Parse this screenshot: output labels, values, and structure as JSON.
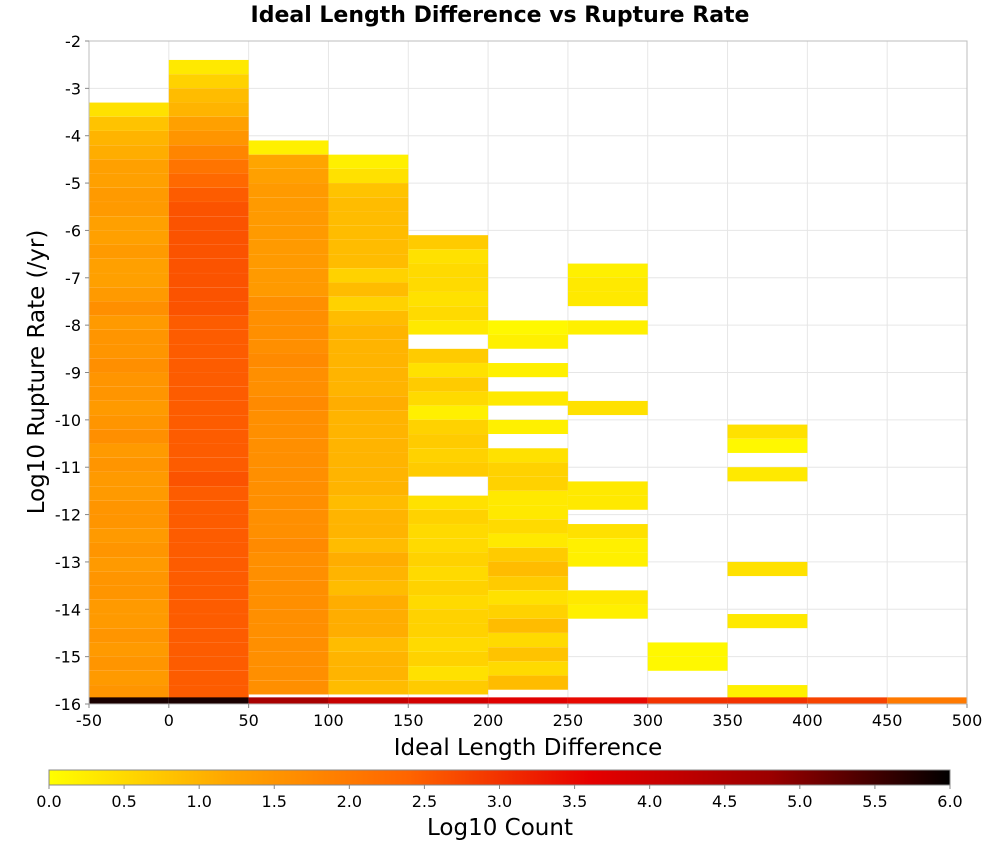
{
  "chart_data": {
    "type": "heatmap",
    "title": "Ideal Length Difference vs Rupture Rate",
    "xlabel": "Ideal Length Difference",
    "ylabel": "Log10 Rupture Rate (/yr)",
    "xlim": [
      -50,
      500
    ],
    "ylim": [
      -16,
      -2
    ],
    "x_ticks": [
      "-50",
      "0",
      "50",
      "100",
      "150",
      "200",
      "250",
      "300",
      "350",
      "400",
      "450",
      "500"
    ],
    "y_ticks": [
      "-2",
      "-3",
      "-4",
      "-5",
      "-6",
      "-7",
      "-8",
      "-9",
      "-10",
      "-11",
      "-12",
      "-13",
      "-14",
      "-15",
      "-16"
    ],
    "grid": true,
    "x_bin_width": 50,
    "y_bin_height": 0.286,
    "colorbar": {
      "label": "Log10 Count",
      "min": 0.0,
      "max": 6.0,
      "ticks": [
        "0.0",
        "0.5",
        "1.0",
        "1.5",
        "2.0",
        "2.5",
        "3.0",
        "3.5",
        "4.0",
        "4.5",
        "5.0",
        "5.5",
        "6.0"
      ],
      "colors": [
        "#ffff00",
        "#ffa500",
        "#ff6400",
        "#e60000",
        "#9b0000",
        "#000000"
      ]
    },
    "columns": [
      {
        "x_start": -50,
        "cells": [
          {
            "y": -3.3,
            "v": 0.4
          },
          {
            "y": -3.6,
            "v": 0.8
          },
          {
            "y": -3.9,
            "v": 1.0
          },
          {
            "y": -4.2,
            "v": 1.1
          },
          {
            "y": -4.5,
            "v": 1.3
          },
          {
            "y": -4.8,
            "v": 1.3
          },
          {
            "y": -5.1,
            "v": 1.4
          },
          {
            "y": -5.4,
            "v": 1.4
          },
          {
            "y": -5.7,
            "v": 1.3
          },
          {
            "y": -6.0,
            "v": 1.3
          },
          {
            "y": -6.3,
            "v": 1.4
          },
          {
            "y": -6.6,
            "v": 1.3
          },
          {
            "y": -6.9,
            "v": 1.3
          },
          {
            "y": -7.2,
            "v": 1.4
          },
          {
            "y": -7.5,
            "v": 1.6
          },
          {
            "y": -7.8,
            "v": 1.4
          },
          {
            "y": -8.1,
            "v": 1.5
          },
          {
            "y": -8.4,
            "v": 1.5
          },
          {
            "y": -8.7,
            "v": 1.6
          },
          {
            "y": -9.0,
            "v": 1.5
          },
          {
            "y": -9.3,
            "v": 1.5
          },
          {
            "y": -9.6,
            "v": 1.4
          },
          {
            "y": -9.9,
            "v": 1.5
          },
          {
            "y": -10.2,
            "v": 1.6
          },
          {
            "y": -10.5,
            "v": 1.4
          },
          {
            "y": -10.8,
            "v": 1.5
          },
          {
            "y": -11.1,
            "v": 1.4
          },
          {
            "y": -11.4,
            "v": 1.4
          },
          {
            "y": -11.7,
            "v": 1.5
          },
          {
            "y": -12.0,
            "v": 1.5
          },
          {
            "y": -12.3,
            "v": 1.4
          },
          {
            "y": -12.6,
            "v": 1.5
          },
          {
            "y": -12.9,
            "v": 1.4
          },
          {
            "y": -13.2,
            "v": 1.5
          },
          {
            "y": -13.5,
            "v": 1.5
          },
          {
            "y": -13.8,
            "v": 1.4
          },
          {
            "y": -14.1,
            "v": 1.4
          },
          {
            "y": -14.4,
            "v": 1.5
          },
          {
            "y": -14.7,
            "v": 1.4
          },
          {
            "y": -15.0,
            "v": 1.5
          },
          {
            "y": -15.3,
            "v": 1.4
          },
          {
            "y": -15.6,
            "v": 1.5
          }
        ]
      },
      {
        "x_start": 0,
        "cells": [
          {
            "y": -2.4,
            "v": 0.3
          },
          {
            "y": -2.7,
            "v": 0.6
          },
          {
            "y": -3.0,
            "v": 0.9
          },
          {
            "y": -3.3,
            "v": 1.0
          },
          {
            "y": -3.6,
            "v": 1.3
          },
          {
            "y": -3.9,
            "v": 1.5
          },
          {
            "y": -4.2,
            "v": 1.8
          },
          {
            "y": -4.5,
            "v": 2.1
          },
          {
            "y": -4.8,
            "v": 2.3
          },
          {
            "y": -5.1,
            "v": 2.5
          },
          {
            "y": -5.4,
            "v": 2.6
          },
          {
            "y": -5.7,
            "v": 2.6
          },
          {
            "y": -6.0,
            "v": 2.6
          },
          {
            "y": -6.3,
            "v": 2.6
          },
          {
            "y": -6.6,
            "v": 2.6
          },
          {
            "y": -6.9,
            "v": 2.6
          },
          {
            "y": -7.2,
            "v": 2.6
          },
          {
            "y": -7.5,
            "v": 2.6
          },
          {
            "y": -7.8,
            "v": 2.5
          },
          {
            "y": -8.1,
            "v": 2.5
          },
          {
            "y": -8.4,
            "v": 2.5
          },
          {
            "y": -8.7,
            "v": 2.5
          },
          {
            "y": -9.0,
            "v": 2.5
          },
          {
            "y": -9.3,
            "v": 2.5
          },
          {
            "y": -9.6,
            "v": 2.5
          },
          {
            "y": -9.9,
            "v": 2.5
          },
          {
            "y": -10.2,
            "v": 2.5
          },
          {
            "y": -10.5,
            "v": 2.5
          },
          {
            "y": -10.8,
            "v": 2.5
          },
          {
            "y": -11.1,
            "v": 2.6
          },
          {
            "y": -11.4,
            "v": 2.5
          },
          {
            "y": -11.7,
            "v": 2.5
          },
          {
            "y": -12.0,
            "v": 2.5
          },
          {
            "y": -12.3,
            "v": 2.5
          },
          {
            "y": -12.6,
            "v": 2.5
          },
          {
            "y": -12.9,
            "v": 2.5
          },
          {
            "y": -13.2,
            "v": 2.5
          },
          {
            "y": -13.5,
            "v": 2.5
          },
          {
            "y": -13.8,
            "v": 2.5
          },
          {
            "y": -14.1,
            "v": 2.5
          },
          {
            "y": -14.4,
            "v": 2.5
          },
          {
            "y": -14.7,
            "v": 2.5
          },
          {
            "y": -15.0,
            "v": 2.5
          },
          {
            "y": -15.3,
            "v": 2.5
          },
          {
            "y": -15.6,
            "v": 2.5
          }
        ]
      },
      {
        "x_start": 50,
        "cells": [
          {
            "y": -4.1,
            "v": 0.2
          },
          {
            "y": -4.4,
            "v": 1.2
          },
          {
            "y": -4.7,
            "v": 1.3
          },
          {
            "y": -5.0,
            "v": 1.4
          },
          {
            "y": -5.3,
            "v": 1.4
          },
          {
            "y": -5.6,
            "v": 1.4
          },
          {
            "y": -5.9,
            "v": 1.4
          },
          {
            "y": -6.2,
            "v": 1.4
          },
          {
            "y": -6.5,
            "v": 1.4
          },
          {
            "y": -6.8,
            "v": 1.4
          },
          {
            "y": -7.1,
            "v": 1.4
          },
          {
            "y": -7.4,
            "v": 1.6
          },
          {
            "y": -7.7,
            "v": 1.6
          },
          {
            "y": -8.0,
            "v": 1.6
          },
          {
            "y": -8.3,
            "v": 1.6
          },
          {
            "y": -8.6,
            "v": 1.7
          },
          {
            "y": -8.9,
            "v": 1.6
          },
          {
            "y": -9.2,
            "v": 1.6
          },
          {
            "y": -9.5,
            "v": 1.7
          },
          {
            "y": -9.8,
            "v": 1.6
          },
          {
            "y": -10.1,
            "v": 1.6
          },
          {
            "y": -10.4,
            "v": 1.6
          },
          {
            "y": -10.7,
            "v": 1.6
          },
          {
            "y": -11.0,
            "v": 1.6
          },
          {
            "y": -11.3,
            "v": 1.6
          },
          {
            "y": -11.6,
            "v": 1.6
          },
          {
            "y": -11.9,
            "v": 1.6
          },
          {
            "y": -12.2,
            "v": 1.6
          },
          {
            "y": -12.5,
            "v": 1.7
          },
          {
            "y": -12.8,
            "v": 1.6
          },
          {
            "y": -13.1,
            "v": 1.6
          },
          {
            "y": -13.4,
            "v": 1.6
          },
          {
            "y": -13.7,
            "v": 1.6
          },
          {
            "y": -14.0,
            "v": 1.6
          },
          {
            "y": -14.3,
            "v": 1.6
          },
          {
            "y": -14.6,
            "v": 1.6
          },
          {
            "y": -14.9,
            "v": 1.6
          },
          {
            "y": -15.2,
            "v": 1.6
          },
          {
            "y": -15.5,
            "v": 1.6
          }
        ]
      },
      {
        "x_start": 100,
        "cells": [
          {
            "y": -4.4,
            "v": 0.2
          },
          {
            "y": -4.7,
            "v": 0.4
          },
          {
            "y": -5.0,
            "v": 0.8
          },
          {
            "y": -5.3,
            "v": 0.9
          },
          {
            "y": -5.6,
            "v": 0.9
          },
          {
            "y": -5.9,
            "v": 0.9
          },
          {
            "y": -6.2,
            "v": 0.9
          },
          {
            "y": -6.5,
            "v": 0.9
          },
          {
            "y": -6.8,
            "v": 0.6
          },
          {
            "y": -7.1,
            "v": 0.9
          },
          {
            "y": -7.4,
            "v": 0.6
          },
          {
            "y": -7.7,
            "v": 0.9
          },
          {
            "y": -8.0,
            "v": 1.0
          },
          {
            "y": -8.3,
            "v": 1.0
          },
          {
            "y": -8.6,
            "v": 1.0
          },
          {
            "y": -8.9,
            "v": 1.0
          },
          {
            "y": -9.2,
            "v": 1.0
          },
          {
            "y": -9.5,
            "v": 1.1
          },
          {
            "y": -9.8,
            "v": 1.0
          },
          {
            "y": -10.1,
            "v": 1.0
          },
          {
            "y": -10.4,
            "v": 1.0
          },
          {
            "y": -10.7,
            "v": 1.0
          },
          {
            "y": -11.0,
            "v": 1.0
          },
          {
            "y": -11.3,
            "v": 1.0
          },
          {
            "y": -11.6,
            "v": 0.9
          },
          {
            "y": -11.9,
            "v": 1.0
          },
          {
            "y": -12.2,
            "v": 1.0
          },
          {
            "y": -12.5,
            "v": 0.9
          },
          {
            "y": -12.8,
            "v": 1.1
          },
          {
            "y": -13.1,
            "v": 1.0
          },
          {
            "y": -13.4,
            "v": 0.9
          },
          {
            "y": -13.7,
            "v": 1.1
          },
          {
            "y": -14.0,
            "v": 1.1
          },
          {
            "y": -14.3,
            "v": 1.1
          },
          {
            "y": -14.6,
            "v": 0.9
          },
          {
            "y": -14.9,
            "v": 1.0
          },
          {
            "y": -15.2,
            "v": 1.0
          },
          {
            "y": -15.5,
            "v": 0.9
          }
        ]
      },
      {
        "x_start": 150,
        "cells": [
          {
            "y": -6.1,
            "v": 0.7
          },
          {
            "y": -6.4,
            "v": 0.4
          },
          {
            "y": -6.7,
            "v": 0.5
          },
          {
            "y": -7.0,
            "v": 0.5
          },
          {
            "y": -7.3,
            "v": 0.4
          },
          {
            "y": -7.6,
            "v": 0.5
          },
          {
            "y": -7.9,
            "v": 0.3
          },
          {
            "y": -8.5,
            "v": 0.7
          },
          {
            "y": -8.8,
            "v": 0.4
          },
          {
            "y": -9.1,
            "v": 0.7
          },
          {
            "y": -9.4,
            "v": 0.5
          },
          {
            "y": -9.7,
            "v": 0.2
          },
          {
            "y": -10.0,
            "v": 0.6
          },
          {
            "y": -10.3,
            "v": 0.7
          },
          {
            "y": -10.6,
            "v": 0.6
          },
          {
            "y": -10.9,
            "v": 0.7
          },
          {
            "y": -11.6,
            "v": 0.4
          },
          {
            "y": -11.9,
            "v": 0.6
          },
          {
            "y": -12.2,
            "v": 0.5
          },
          {
            "y": -12.5,
            "v": 0.5
          },
          {
            "y": -12.8,
            "v": 0.6
          },
          {
            "y": -13.1,
            "v": 0.5
          },
          {
            "y": -13.4,
            "v": 0.6
          },
          {
            "y": -13.7,
            "v": 0.5
          },
          {
            "y": -14.0,
            "v": 0.6
          },
          {
            "y": -14.3,
            "v": 0.6
          },
          {
            "y": -14.6,
            "v": 0.5
          },
          {
            "y": -14.9,
            "v": 0.6
          },
          {
            "y": -15.2,
            "v": 0.4
          },
          {
            "y": -15.5,
            "v": 0.7
          }
        ]
      },
      {
        "x_start": 200,
        "cells": [
          {
            "y": -7.9,
            "v": 0.1
          },
          {
            "y": -8.2,
            "v": 0.2
          },
          {
            "y": -8.8,
            "v": 0.2
          },
          {
            "y": -9.4,
            "v": 0.3
          },
          {
            "y": -10.0,
            "v": 0.2
          },
          {
            "y": -10.6,
            "v": 0.4
          },
          {
            "y": -10.9,
            "v": 0.6
          },
          {
            "y": -11.2,
            "v": 0.6
          },
          {
            "y": -11.5,
            "v": 0.3
          },
          {
            "y": -11.8,
            "v": 0.3
          },
          {
            "y": -12.1,
            "v": 0.5
          },
          {
            "y": -12.4,
            "v": 0.3
          },
          {
            "y": -12.7,
            "v": 0.7
          },
          {
            "y": -13.0,
            "v": 0.9
          },
          {
            "y": -13.3,
            "v": 0.7
          },
          {
            "y": -13.6,
            "v": 0.4
          },
          {
            "y": -13.9,
            "v": 0.6
          },
          {
            "y": -14.2,
            "v": 0.9
          },
          {
            "y": -14.5,
            "v": 0.5
          },
          {
            "y": -14.8,
            "v": 0.8
          },
          {
            "y": -15.1,
            "v": 0.5
          },
          {
            "y": -15.4,
            "v": 0.9
          }
        ]
      },
      {
        "x_start": 250,
        "cells": [
          {
            "y": -6.7,
            "v": 0.2
          },
          {
            "y": -7.0,
            "v": 0.3
          },
          {
            "y": -7.3,
            "v": 0.3
          },
          {
            "y": -7.9,
            "v": 0.2
          },
          {
            "y": -9.6,
            "v": 0.4
          },
          {
            "y": -11.3,
            "v": 0.3
          },
          {
            "y": -11.6,
            "v": 0.3
          },
          {
            "y": -12.2,
            "v": 0.4
          },
          {
            "y": -12.5,
            "v": 0.2
          },
          {
            "y": -12.8,
            "v": 0.2
          },
          {
            "y": -13.6,
            "v": 0.3
          },
          {
            "y": -13.9,
            "v": 0.2
          }
        ]
      },
      {
        "x_start": 300,
        "cells": [
          {
            "y": -14.7,
            "v": 0.1
          },
          {
            "y": -15.0,
            "v": 0.1
          }
        ]
      },
      {
        "x_start": 350,
        "cells": [
          {
            "y": -10.1,
            "v": 0.4
          },
          {
            "y": -10.4,
            "v": 0.1
          },
          {
            "y": -11.0,
            "v": 0.3
          },
          {
            "y": -13.0,
            "v": 0.4
          },
          {
            "y": -14.1,
            "v": 0.3
          },
          {
            "y": -15.6,
            "v": 0.2
          }
        ]
      }
    ],
    "bottom_row": {
      "y_top": -15.86,
      "y_bottom": -16.0,
      "values": [
        5.8,
        5.8,
        4.6,
        4.1,
        3.9,
        3.7,
        3.5,
        3.0,
        3.0,
        2.8,
        2.0
      ]
    }
  }
}
